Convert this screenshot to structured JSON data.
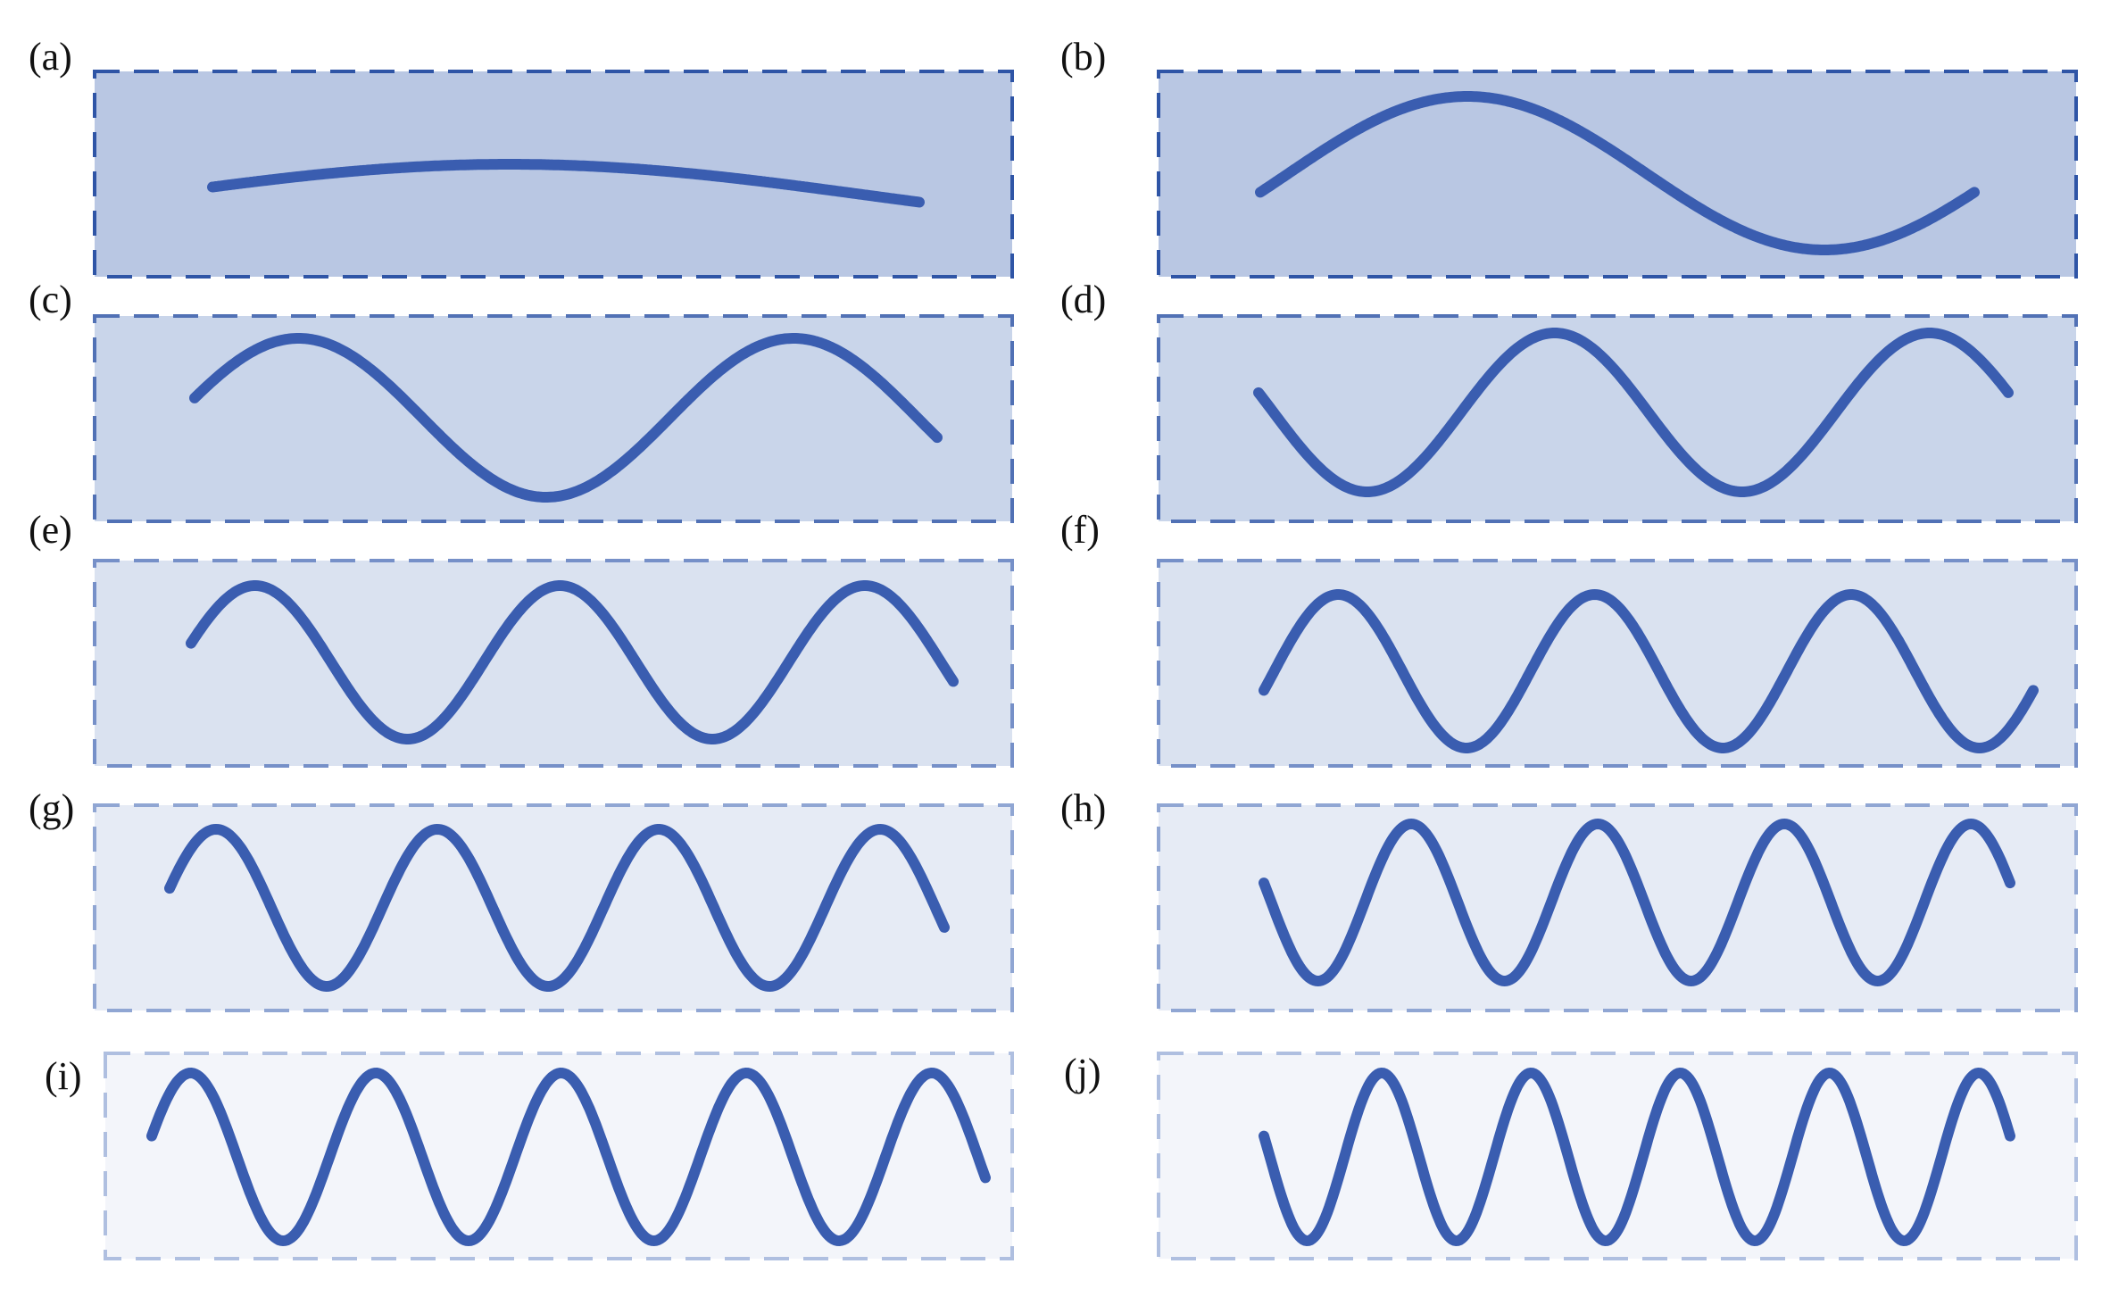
{
  "panels": [
    {
      "id": "a",
      "label": "(a)",
      "half_waves": 1,
      "fill_color": "#b9c7e3",
      "border_color": "#2f55a6"
    },
    {
      "id": "b",
      "label": "(b)",
      "half_waves": 2,
      "fill_color": "#b9c7e3",
      "border_color": "#2f55a6"
    },
    {
      "id": "c",
      "label": "(c)",
      "half_waves": 3,
      "fill_color": "#c9d5ea",
      "border_color": "#5171b5"
    },
    {
      "id": "d",
      "label": "(d)",
      "half_waves": 4,
      "fill_color": "#c9d5ea",
      "border_color": "#5171b5"
    },
    {
      "id": "e",
      "label": "(e)",
      "half_waves": 5,
      "fill_color": "#dae2f0",
      "border_color": "#7690c8"
    },
    {
      "id": "f",
      "label": "(f)",
      "half_waves": 6,
      "fill_color": "#dae2f0",
      "border_color": "#7690c8"
    },
    {
      "id": "g",
      "label": "(g)",
      "half_waves": 7,
      "fill_color": "#e6ebf5",
      "border_color": "#90a6d3"
    },
    {
      "id": "h",
      "label": "(h)",
      "half_waves": 8,
      "fill_color": "#e6ebf5",
      "border_color": "#90a6d3"
    },
    {
      "id": "i",
      "label": "(i)",
      "half_waves": 9,
      "fill_color": "#f3f5fa",
      "border_color": "#afbfe0"
    },
    {
      "id": "j",
      "label": "(j)",
      "half_waves": 10,
      "fill_color": "#f3f5fa",
      "border_color": "#afbfe0"
    }
  ],
  "colors": {
    "wave": "#3a5db0",
    "background": "#ffffff"
  }
}
